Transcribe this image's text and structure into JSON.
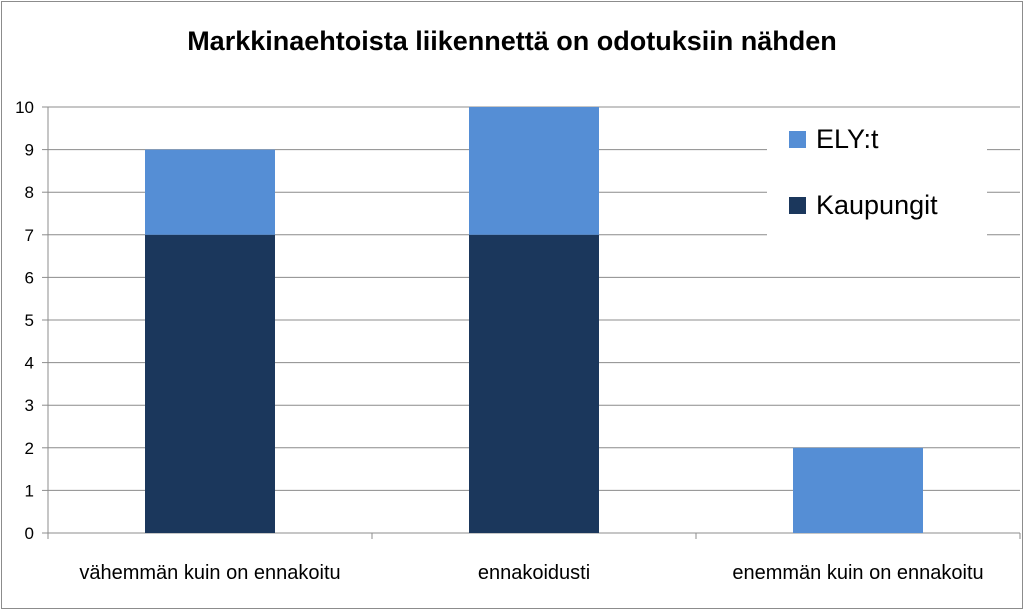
{
  "chart_data": {
    "type": "bar",
    "stacked": true,
    "title": "Markkinaehtoista liikennettä on odotuksiin nähden",
    "categories": [
      "vähemmän kuin on ennakoitu",
      "ennakoidusti",
      "enemmän kuin on ennakoitu"
    ],
    "series": [
      {
        "name": "Kaupungit",
        "values": [
          7,
          7,
          0
        ],
        "color": "#1b375c"
      },
      {
        "name": "ELY:t",
        "values": [
          2,
          3,
          2
        ],
        "color": "#558ed5"
      }
    ],
    "ylim": [
      0,
      10
    ],
    "yticks": [
      "0",
      "1",
      "2",
      "3",
      "4",
      "5",
      "6",
      "7",
      "8",
      "9",
      "10"
    ],
    "grid": true,
    "legend_position": "top-right"
  }
}
